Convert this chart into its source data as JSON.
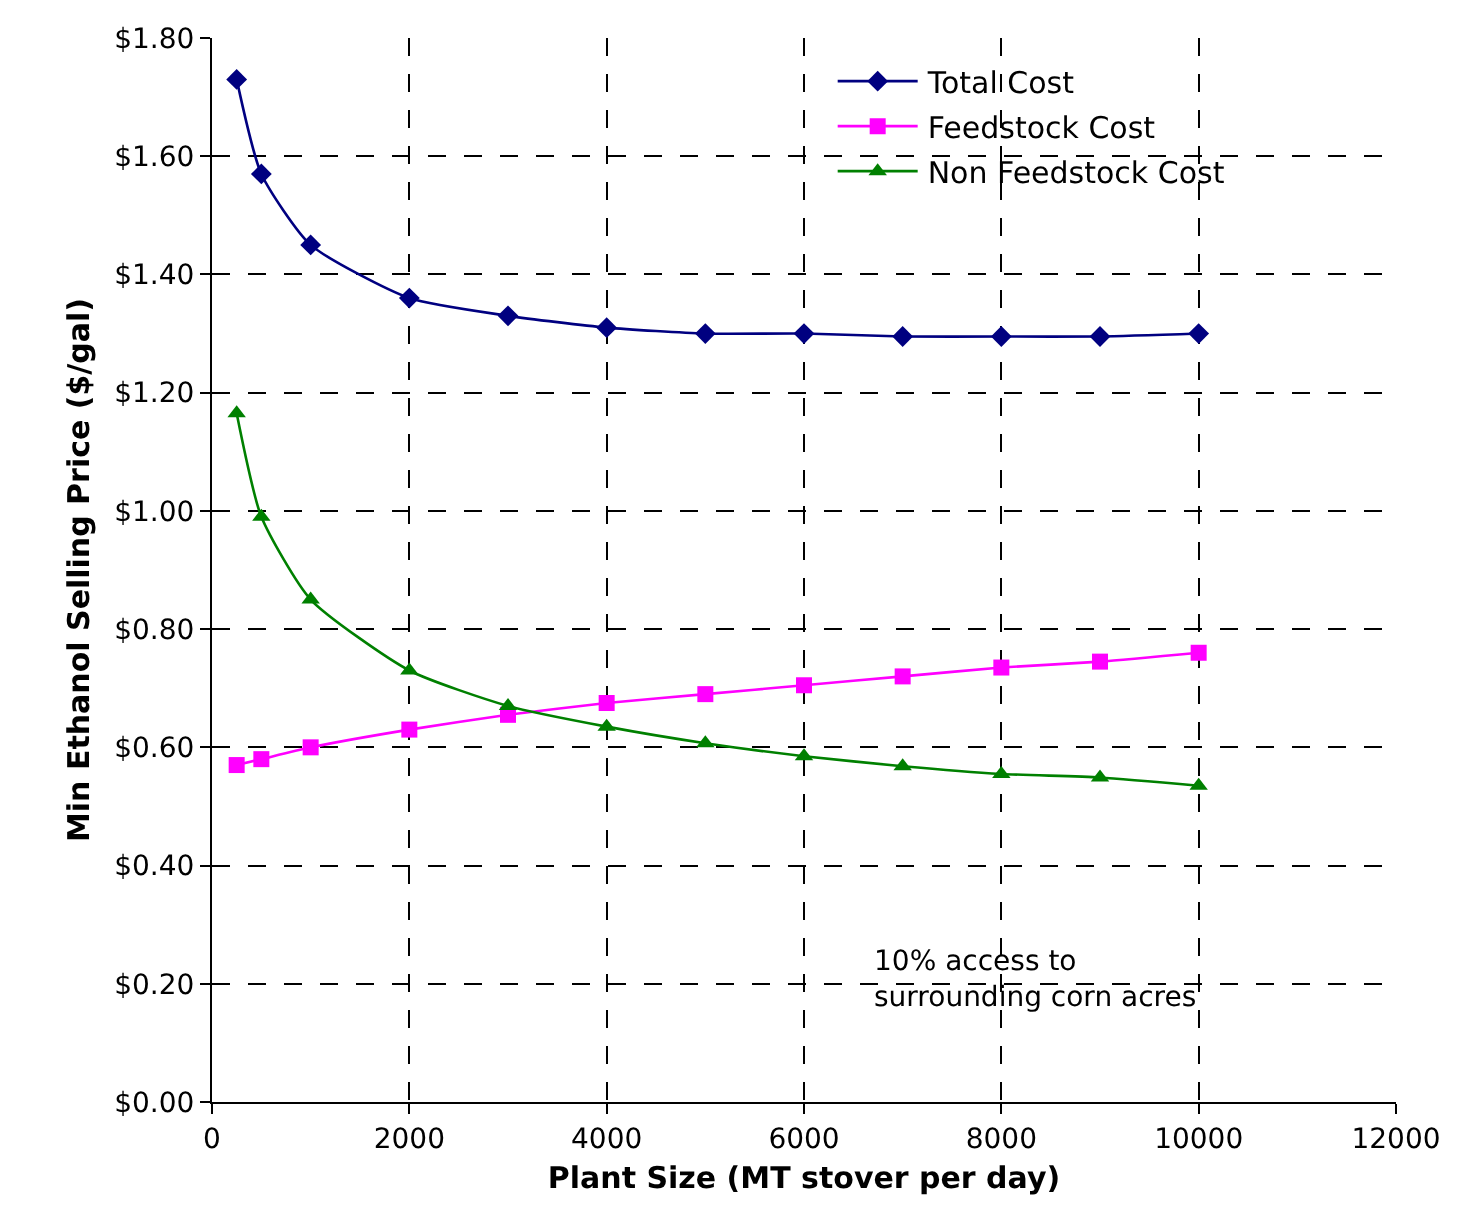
{
  "chart_data": {
    "type": "line",
    "xlabel": "Plant Size (MT stover per day)",
    "ylabel": "Min Ethanol Selling Price ($/gal)",
    "x": [
      250,
      500,
      1000,
      2000,
      3000,
      4000,
      5000,
      6000,
      7000,
      8000,
      9000,
      10000
    ],
    "series": [
      {
        "name": "Total Cost",
        "color": "#000080",
        "marker": "diamond",
        "values": [
          1.73,
          1.57,
          1.45,
          1.36,
          1.33,
          1.31,
          1.3,
          1.3,
          1.295,
          1.295,
          1.295,
          1.3
        ]
      },
      {
        "name": "Feedstock Cost",
        "color": "#ff00ff",
        "marker": "square",
        "values": [
          0.57,
          0.58,
          0.6,
          0.63,
          0.655,
          0.675,
          0.69,
          0.705,
          0.72,
          0.735,
          0.745,
          0.76
        ]
      },
      {
        "name": "Non Feedstock Cost",
        "color": "#008000",
        "marker": "triangle",
        "values": [
          1.165,
          0.99,
          0.85,
          0.73,
          0.67,
          0.635,
          0.607,
          0.585,
          0.568,
          0.555,
          0.549,
          0.535
        ]
      }
    ],
    "xlim": [
      0,
      12000
    ],
    "xticks": [
      0,
      2000,
      4000,
      6000,
      8000,
      10000,
      12000
    ],
    "ylim": [
      0,
      1.8
    ],
    "yticks": [
      {
        "value": 0,
        "label": "$0.00"
      },
      {
        "value": 0.2,
        "label": "$0.20"
      },
      {
        "value": 0.4,
        "label": "$0.40"
      },
      {
        "value": 0.6,
        "label": "$0.60"
      },
      {
        "value": 0.8,
        "label": "$0.80"
      },
      {
        "value": 1.0,
        "label": "$1.00"
      },
      {
        "value": 1.2,
        "label": "$1.20"
      },
      {
        "value": 1.4,
        "label": "$1.40"
      },
      {
        "value": 1.6,
        "label": "$1.60"
      },
      {
        "value": 1.8,
        "label": "$1.80"
      }
    ],
    "grid": true,
    "legend": "top right",
    "line_style": "solid",
    "annotations": [
      "10% access to\nsurrounding corn acres"
    ]
  }
}
